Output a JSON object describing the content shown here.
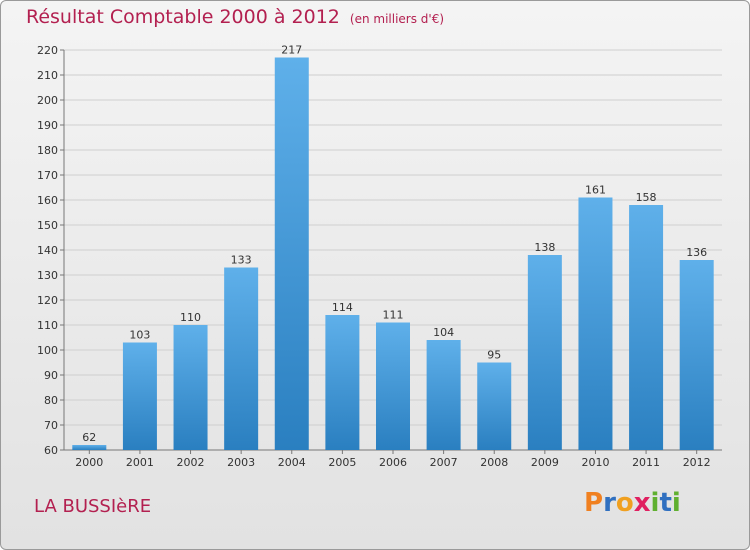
{
  "title": "Résultat Comptable 2000 à 2012",
  "unit_label": "(en milliers d'€)",
  "commune_name": "LA BUSSIèRE",
  "logo": {
    "text": "Proxiti",
    "letters": [
      "P",
      "r",
      "o",
      "x",
      "i",
      "t",
      "i"
    ],
    "colors": [
      "#f08020",
      "#3070c0",
      "#f0a020",
      "#e02060",
      "#60b030",
      "#3070c0",
      "#60b030"
    ]
  },
  "colors": {
    "title": "#b32050",
    "bar_light": "#5fb0ea",
    "bar_dark": "#2a7fc0",
    "grid": "#cfcfcf"
  },
  "chart_data": {
    "type": "bar",
    "title": "Résultat Comptable 2000 à 2012",
    "ylabel": "en milliers d'€",
    "xlabel": "",
    "categories": [
      "2000",
      "2001",
      "2002",
      "2003",
      "2004",
      "2005",
      "2006",
      "2007",
      "2008",
      "2009",
      "2010",
      "2011",
      "2012"
    ],
    "values": [
      62,
      103,
      110,
      133,
      217,
      114,
      111,
      104,
      95,
      138,
      161,
      158,
      136
    ],
    "ylim": [
      60,
      220
    ],
    "yticks": [
      60,
      70,
      80,
      90,
      100,
      110,
      120,
      130,
      140,
      150,
      160,
      170,
      180,
      190,
      200,
      210,
      220
    ],
    "grid": true
  }
}
